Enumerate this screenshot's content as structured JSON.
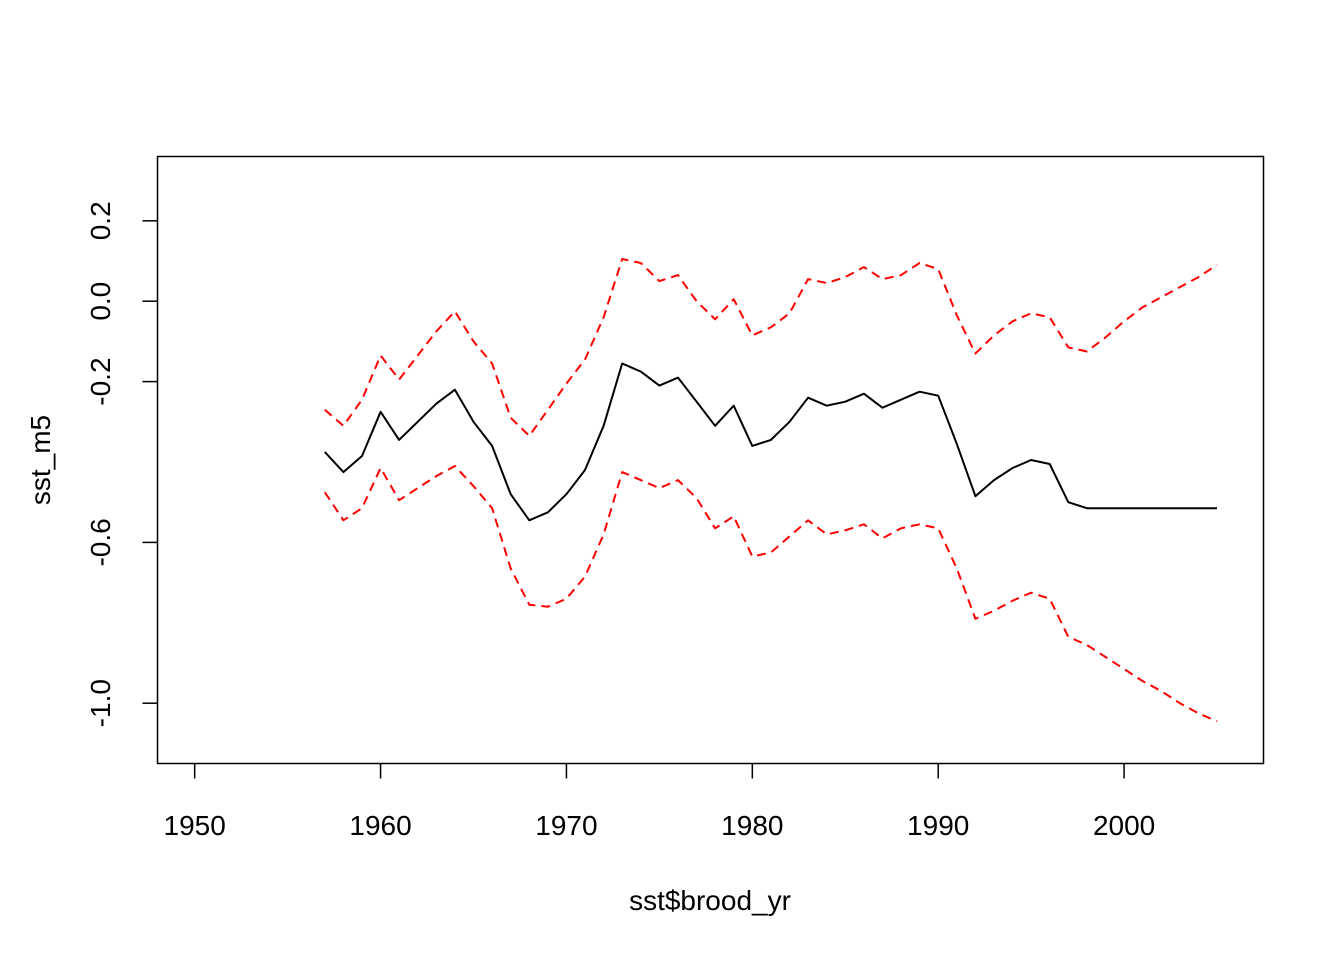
{
  "chart_data": {
    "type": "line",
    "xlabel": "sst$brood_yr",
    "ylabel": "sst_m5",
    "xlim": [
      1948,
      2007.5
    ],
    "ylim": [
      -1.15,
      0.36
    ],
    "xticks": [
      1950,
      1960,
      1970,
      1980,
      1990,
      2000
    ],
    "yticks": [
      -1.0,
      -0.6,
      -0.2,
      0.0,
      0.2
    ],
    "ytick_labels": [
      "-1.0",
      "-0.6",
      "-0.2",
      "0.0",
      "0.2"
    ],
    "grid": false,
    "x": [
      1957,
      1958,
      1959,
      1960,
      1961,
      1962,
      1963,
      1964,
      1965,
      1966,
      1967,
      1968,
      1969,
      1970,
      1971,
      1972,
      1973,
      1974,
      1975,
      1976,
      1977,
      1978,
      1979,
      1980,
      1981,
      1982,
      1983,
      1984,
      1985,
      1986,
      1987,
      1988,
      1989,
      1990,
      1991,
      1992,
      1993,
      1994,
      1995,
      1996,
      1997,
      1998,
      1999,
      2000,
      2001,
      2002,
      2003,
      2004,
      2005
    ],
    "series": [
      {
        "role": "estimate",
        "color": "#000000",
        "dash": "solid",
        "values": [
          -0.375,
          -0.425,
          -0.385,
          -0.275,
          -0.345,
          -0.3,
          -0.255,
          -0.22,
          -0.3,
          -0.36,
          -0.48,
          -0.545,
          -0.525,
          -0.48,
          -0.42,
          -0.31,
          -0.155,
          -0.175,
          -0.21,
          -0.19,
          -0.25,
          -0.31,
          -0.26,
          -0.36,
          -0.345,
          -0.3,
          -0.24,
          -0.26,
          -0.25,
          -0.23,
          -0.265,
          -0.245,
          -0.225,
          -0.235,
          -0.355,
          -0.485,
          -0.445,
          -0.415,
          -0.395,
          -0.405,
          -0.5,
          -0.515,
          -0.515,
          -0.515,
          -0.515,
          -0.515,
          -0.515,
          -0.515,
          -0.515
        ]
      },
      {
        "role": "upper",
        "color": "#ff0000",
        "dash": "dashed",
        "values": [
          -0.27,
          -0.31,
          -0.245,
          -0.135,
          -0.195,
          -0.135,
          -0.075,
          -0.025,
          -0.1,
          -0.155,
          -0.29,
          -0.335,
          -0.27,
          -0.205,
          -0.145,
          -0.04,
          0.105,
          0.095,
          0.05,
          0.065,
          0.0,
          -0.045,
          0.005,
          -0.085,
          -0.065,
          -0.03,
          0.055,
          0.045,
          0.06,
          0.085,
          0.055,
          0.065,
          0.095,
          0.08,
          -0.035,
          -0.13,
          -0.085,
          -0.05,
          -0.03,
          -0.04,
          -0.115,
          -0.125,
          -0.09,
          -0.05,
          -0.015,
          0.01,
          0.035,
          0.06,
          0.09
        ]
      },
      {
        "role": "lower",
        "color": "#ff0000",
        "dash": "dashed",
        "values": [
          -0.475,
          -0.545,
          -0.515,
          -0.415,
          -0.495,
          -0.465,
          -0.435,
          -0.41,
          -0.46,
          -0.515,
          -0.665,
          -0.755,
          -0.76,
          -0.74,
          -0.685,
          -0.58,
          -0.425,
          -0.445,
          -0.465,
          -0.445,
          -0.49,
          -0.565,
          -0.535,
          -0.635,
          -0.625,
          -0.585,
          -0.545,
          -0.58,
          -0.57,
          -0.555,
          -0.59,
          -0.565,
          -0.555,
          -0.565,
          -0.665,
          -0.79,
          -0.77,
          -0.745,
          -0.725,
          -0.74,
          -0.835,
          -0.855,
          -0.885,
          -0.915,
          -0.945,
          -0.97,
          -1.0,
          -1.025,
          -1.045
        ]
      }
    ]
  }
}
